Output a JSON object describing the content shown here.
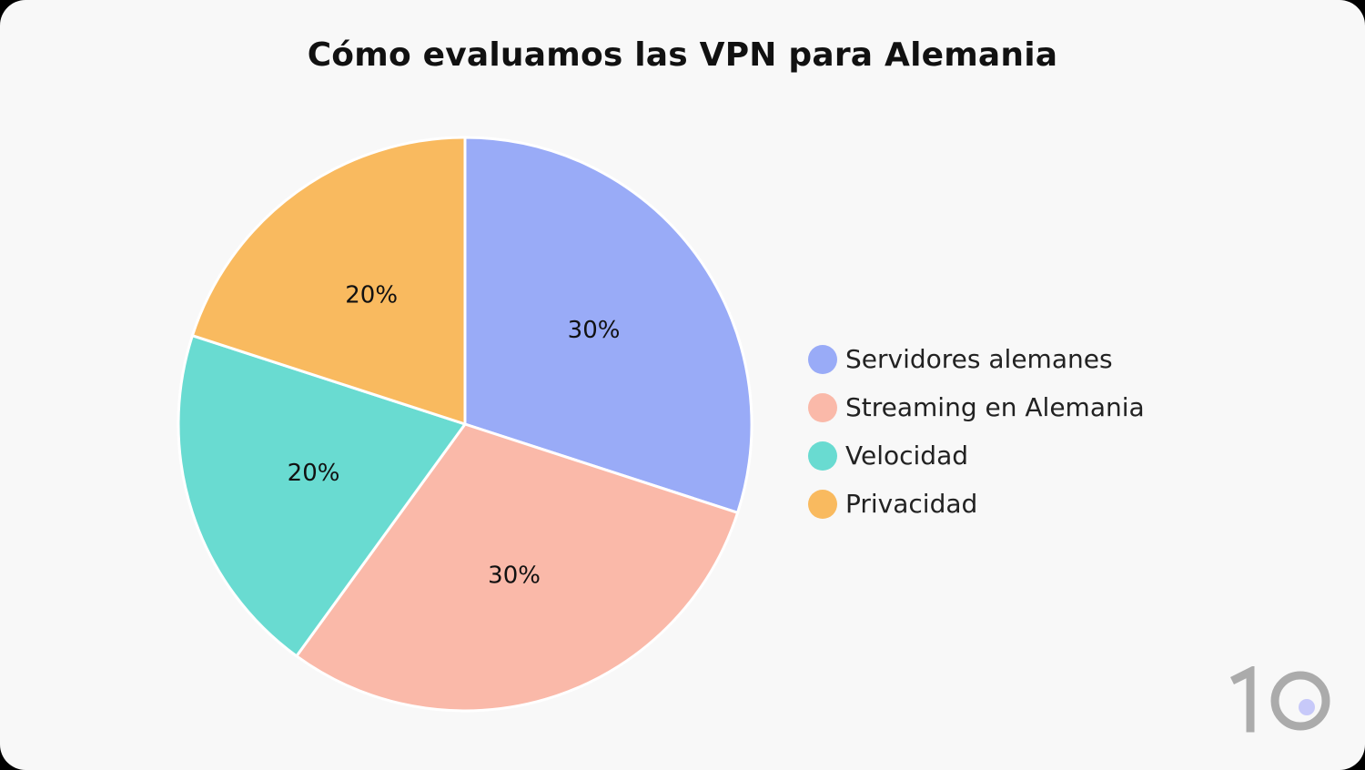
{
  "chart_data": {
    "type": "pie",
    "title": "Cómo evaluamos las VPN para Alemania",
    "categories": [
      "Servidores alemanes",
      "Streaming en Alemania",
      "Velocidad",
      "Privacidad"
    ],
    "values": [
      30,
      30,
      20,
      20
    ],
    "data_labels": [
      "30%",
      "30%",
      "20%",
      "20%"
    ],
    "colors": [
      "#99abf7",
      "#fab9a9",
      "#69dbd1",
      "#f9ba5f"
    ],
    "start_angle": "12 o'clock",
    "direction": "clockwise",
    "legend_position": "right"
  },
  "logo": {
    "colors": [
      "#ababab",
      "#c7c9f9"
    ]
  }
}
